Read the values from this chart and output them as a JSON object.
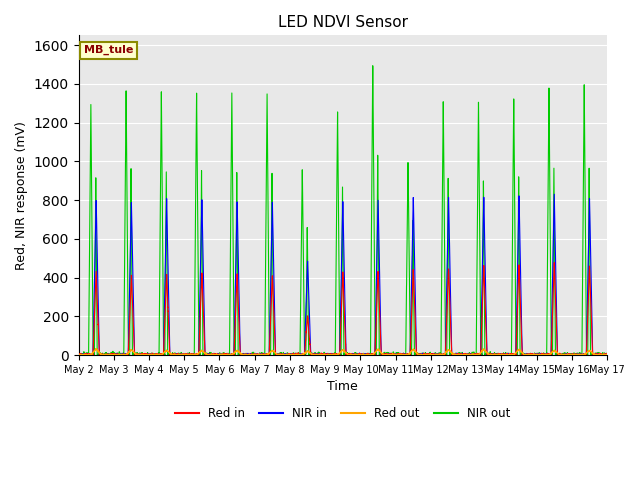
{
  "title": "LED NDVI Sensor",
  "xlabel": "Time",
  "ylabel": "Red, NIR response (mV)",
  "ylim": [
    0,
    1650
  ],
  "annotation": "MB_tule",
  "colors": {
    "red_in": "#ff0000",
    "nir_in": "#0000ff",
    "red_out": "#ffa500",
    "nir_out": "#00cc00"
  },
  "legend_labels": [
    "Red in",
    "NIR in",
    "Red out",
    "NIR out"
  ],
  "x_tick_labels": [
    "May 2",
    "May 3",
    "May 4",
    "May 5",
    "May 6",
    "May 7",
    "May 8",
    "May 9",
    "May 10",
    "May 11",
    "May 12",
    "May 13",
    "May 14",
    "May 15",
    "May 16",
    "May 17"
  ],
  "background_color": "#e8e8e8",
  "red_in_peaks": [
    430,
    410,
    420,
    425,
    420,
    415,
    200,
    430,
    435,
    445,
    450,
    460,
    470,
    480,
    460
  ],
  "nir_in_peaks": [
    800,
    790,
    805,
    810,
    800,
    790,
    490,
    800,
    810,
    820,
    820,
    820,
    825,
    830,
    810
  ],
  "red_out_peaks": [
    30,
    25,
    22,
    22,
    22,
    22,
    18,
    25,
    28,
    28,
    25,
    28,
    28,
    22,
    22
  ],
  "nir_out_peaks": [
    1290,
    1370,
    1370,
    1370,
    1365,
    1365,
    970,
    1265,
    1510,
    1010,
    1320,
    1310,
    1335,
    1380,
    1390
  ]
}
